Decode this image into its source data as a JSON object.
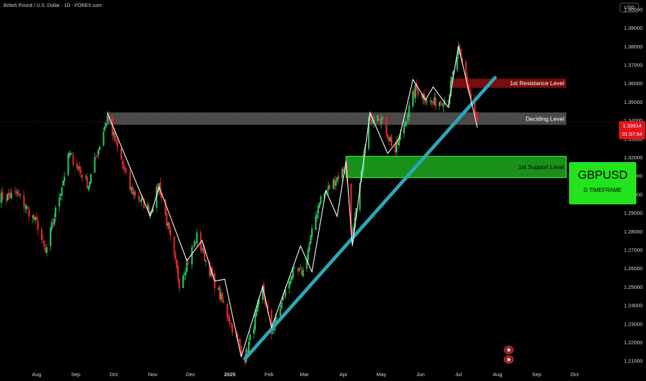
{
  "header": {
    "title": "British Pound / U.S. Dollar · 1D · FOREX.com"
  },
  "currency_button": "USD",
  "badge": {
    "symbol": "GBPUSD",
    "timeframe": "D TIMEFRAME"
  },
  "price_tag": {
    "price": "1.33914",
    "countdown": "01:57:54"
  },
  "icons": [
    "economic-event-icon",
    "economic-event-icon"
  ],
  "colors": {
    "resistance": "#8b1010",
    "deciding": "#5d5d5d",
    "support": "#1fa91f",
    "trendline": "#2aa7b8",
    "bull": "#22c55e",
    "bear": "#e0272b",
    "badge": "#22e31c",
    "price_line": "#e3151a"
  },
  "chart_data": {
    "type": "candlestick",
    "y_ticks": [
      "1.40000",
      "1.39000",
      "1.38000",
      "1.37000",
      "1.36000",
      "1.35000",
      "1.34000",
      "1.33000",
      "1.32000",
      "1.31000",
      "1.30000",
      "1.29000",
      "1.28000",
      "1.27000",
      "1.26000",
      "1.25000",
      "1.24000",
      "1.23000",
      "1.22000",
      "1.21000"
    ],
    "ylim": [
      1.205,
      1.405
    ],
    "x_ticks": [
      "Aug",
      "Sep",
      "Oct",
      "Nov",
      "Dec",
      "2025",
      "Feb",
      "Mar",
      "Apr",
      "May",
      "Jun",
      "Jul",
      "Aug",
      "Sep",
      "Oct"
    ],
    "x_tick_dates": [
      "2024-08-01",
      "2024-09-01",
      "2024-10-01",
      "2024-11-01",
      "2024-12-01",
      "2025-01-01",
      "2025-02-01",
      "2025-03-01",
      "2025-04-01",
      "2025-05-01",
      "2025-06-01",
      "2025-07-01",
      "2025-08-01",
      "2025-09-01",
      "2025-10-01"
    ],
    "xlim": [
      "2024-07-03",
      "2025-10-29"
    ],
    "price_path": [
      [
        "2024-07-03",
        1.298
      ],
      [
        "2024-07-17",
        1.3
      ],
      [
        "2024-08-02",
        1.283
      ],
      [
        "2024-08-08",
        1.268
      ],
      [
        "2024-08-27",
        1.322
      ],
      [
        "2024-09-11",
        1.305
      ],
      [
        "2024-09-26",
        1.342
      ],
      [
        "2024-10-14",
        1.303
      ],
      [
        "2024-10-30",
        1.291
      ],
      [
        "2024-11-06",
        1.305
      ],
      [
        "2024-11-22",
        1.252
      ],
      [
        "2024-12-06",
        1.277
      ],
      [
        "2024-12-20",
        1.252
      ],
      [
        "2025-01-13",
        1.211
      ],
      [
        "2025-01-27",
        1.249
      ],
      [
        "2025-02-03",
        1.225
      ],
      [
        "2025-02-19",
        1.257
      ],
      [
        "2025-02-28",
        1.258
      ],
      [
        "2025-03-13",
        1.297
      ],
      [
        "2025-04-03",
        1.315
      ],
      [
        "2025-04-08",
        1.275
      ],
      [
        "2025-04-21",
        1.34
      ],
      [
        "2025-04-28",
        1.345
      ],
      [
        "2025-05-12",
        1.323
      ],
      [
        "2025-05-28",
        1.357
      ],
      [
        "2025-06-10",
        1.349
      ],
      [
        "2025-06-23",
        1.352
      ],
      [
        "2025-07-01",
        1.378
      ],
      [
        "2025-07-16",
        1.338
      ]
    ],
    "zigzag": [
      [
        "2024-09-26",
        1.344
      ],
      [
        "2024-10-30",
        1.288
      ],
      [
        "2024-11-06",
        1.304
      ],
      [
        "2024-11-28",
        1.264
      ],
      [
        "2024-12-10",
        1.275
      ],
      [
        "2024-12-20",
        1.253
      ],
      [
        "2024-12-28",
        1.254
      ],
      [
        "2025-01-10",
        1.212
      ],
      [
        "2025-01-27",
        1.25
      ],
      [
        "2025-02-03",
        1.228
      ],
      [
        "2025-02-26",
        1.272
      ],
      [
        "2025-03-07",
        1.258
      ],
      [
        "2025-03-18",
        1.302
      ],
      [
        "2025-03-27",
        1.288
      ],
      [
        "2025-04-03",
        1.318
      ],
      [
        "2025-04-08",
        1.272
      ],
      [
        "2025-04-22",
        1.344
      ],
      [
        "2025-05-06",
        1.322
      ],
      [
        "2025-05-15",
        1.33
      ],
      [
        "2025-05-26",
        1.362
      ],
      [
        "2025-06-05",
        1.351
      ],
      [
        "2025-06-11",
        1.358
      ],
      [
        "2025-06-23",
        1.347
      ],
      [
        "2025-07-01",
        1.38
      ],
      [
        "2025-07-16",
        1.336
      ]
    ],
    "zones": [
      {
        "label": "1st Resistance Level",
        "from": "2025-06-24",
        "y_low": 1.3575,
        "y_high": 1.3625
      },
      {
        "label": "Deciding Level",
        "from": "2024-09-26",
        "y_low": 1.3375,
        "y_high": 1.3442
      },
      {
        "label": "1st Support Level",
        "from": "2025-04-03",
        "y_low": 1.309,
        "y_high": 1.3205
      }
    ],
    "trendline": [
      [
        "2025-01-13",
        1.211
      ],
      [
        "2025-07-30",
        1.363
      ]
    ],
    "current_price": 1.33914
  }
}
